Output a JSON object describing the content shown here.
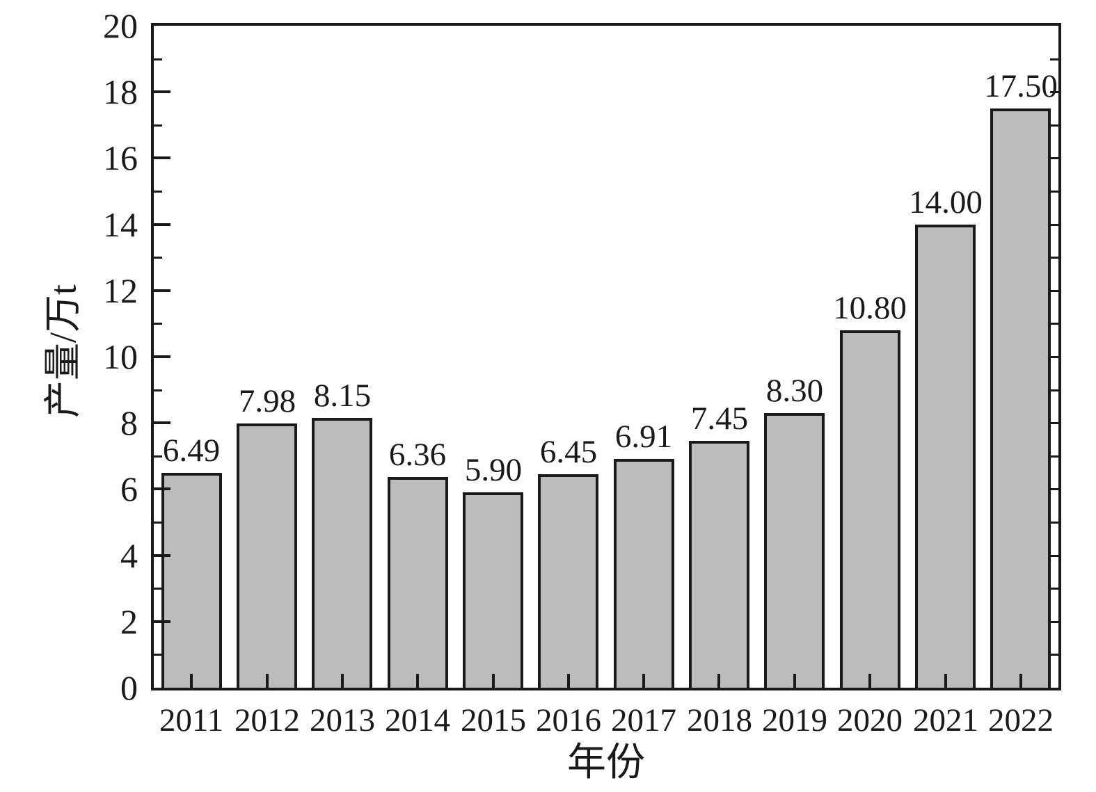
{
  "chart_data": {
    "type": "bar",
    "title": "",
    "xlabel": "年份",
    "ylabel": "产量/万t",
    "categories": [
      "2011",
      "2012",
      "2013",
      "2014",
      "2015",
      "2016",
      "2017",
      "2018",
      "2019",
      "2020",
      "2021",
      "2022"
    ],
    "values": [
      6.49,
      7.98,
      8.15,
      6.36,
      5.9,
      6.45,
      6.91,
      7.45,
      8.3,
      10.8,
      14.0,
      17.5
    ],
    "value_labels": [
      "6.49",
      "7.98",
      "8.15",
      "6.36",
      "5.90",
      "6.45",
      "6.91",
      "7.45",
      "8.30",
      "10.80",
      "14.00",
      "17.50"
    ],
    "ylim": [
      0,
      20
    ],
    "y_major_ticks": [
      0,
      2,
      4,
      6,
      8,
      10,
      12,
      14,
      16,
      18,
      20
    ],
    "y_minor_step": 1,
    "grid": "off",
    "legend": "none",
    "bar_fill_color": "#bcbcbc",
    "bar_edge_color": "#1a1a1a",
    "axis_color": "#1a1a1a",
    "background_color": "#ffffff"
  }
}
